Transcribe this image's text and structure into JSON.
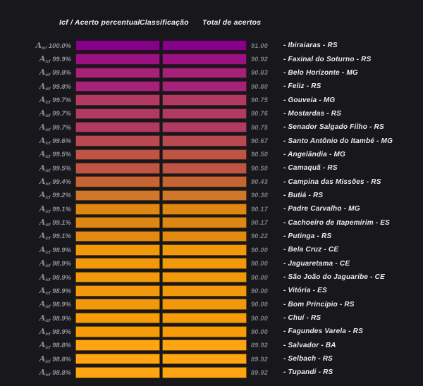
{
  "page": {
    "background": "#17171c"
  },
  "header": {
    "col_icf": "Icf / Acerto percentual",
    "col_classificacao": "Classificação",
    "col_total": "Total de acertos"
  },
  "row_label": {
    "prefix": "A",
    "subscript": "icf"
  },
  "city_prefix": "- ",
  "colors": {
    "label_gray": "#8d9197",
    "value_gray": "#7d8287",
    "city_white": "#ebecee",
    "gradient_top": "#840287",
    "gradient_bottom": "#ffa512"
  },
  "chart_data": {
    "type": "table",
    "title": "",
    "columns": [
      "Icf / Acerto percentual",
      "Classificação",
      "Total de acertos"
    ],
    "legend_position": "none",
    "grid": false,
    "rows": [
      {
        "icf_pct": "100.0%",
        "total": "91.00",
        "city": "Ibiraiaras - RS",
        "color": "#840287"
      },
      {
        "icf_pct": "99.9%",
        "total": "90.92",
        "city": "Faxinal do Soturno - RS",
        "color": "#9c1181"
      },
      {
        "icf_pct": "99.8%",
        "total": "90.83",
        "city": "Belo Horizonte - MG",
        "color": "#a52278"
      },
      {
        "icf_pct": "99.8%",
        "total": "90.80",
        "city": "Feliz - RS",
        "color": "#a52278"
      },
      {
        "icf_pct": "99.7%",
        "total": "90.75",
        "city": "Gouveia - MG",
        "color": "#b13a62"
      },
      {
        "icf_pct": "99.7%",
        "total": "90.76",
        "city": "Mostardas - RS",
        "color": "#b13a62"
      },
      {
        "icf_pct": "99.7%",
        "total": "90.75",
        "city": "Senador Salgado Filho - RS",
        "color": "#b13a62"
      },
      {
        "icf_pct": "99.6%",
        "total": "90.67",
        "city": "Santo Antônio do Itambé - MG",
        "color": "#b84951"
      },
      {
        "icf_pct": "99.5%",
        "total": "90.50",
        "city": "Angelândia - MG",
        "color": "#be5443"
      },
      {
        "icf_pct": "99.5%",
        "total": "90.50",
        "city": "Camaquã - RS",
        "color": "#be5443"
      },
      {
        "icf_pct": "99.4%",
        "total": "90.43",
        "city": "Campina das Missões - RS",
        "color": "#c66434"
      },
      {
        "icf_pct": "99.2%",
        "total": "90.30",
        "city": "Butiá - RS",
        "color": "#d1772a"
      },
      {
        "icf_pct": "99.1%",
        "total": "90.17",
        "city": "Padre Carvalho - MG",
        "color": "#df8713"
      },
      {
        "icf_pct": "99.1%",
        "total": "90.17",
        "city": "Cachoeiro de Itapemirim - ES",
        "color": "#df8713"
      },
      {
        "icf_pct": "99.1%",
        "total": "90.22",
        "city": "Putinga - RS",
        "color": "#e28a10"
      },
      {
        "icf_pct": "98.9%",
        "total": "90.00",
        "city": "Bela Cruz - CE",
        "color": "#f2990b"
      },
      {
        "icf_pct": "98.9%",
        "total": "90.00",
        "city": "Jaguaretama - CE",
        "color": "#f2990b"
      },
      {
        "icf_pct": "98.9%",
        "total": "90.00",
        "city": "São João do Jaguaribe - CE",
        "color": "#f2990b"
      },
      {
        "icf_pct": "98.9%",
        "total": "90.00",
        "city": "Vitória - ES",
        "color": "#f2990b"
      },
      {
        "icf_pct": "98.9%",
        "total": "90.00",
        "city": "Bom Princípio - RS",
        "color": "#f2990b"
      },
      {
        "icf_pct": "98.9%",
        "total": "90.00",
        "city": "Chuí - RS",
        "color": "#f59c08"
      },
      {
        "icf_pct": "98.9%",
        "total": "90.00",
        "city": "Fagundes Varela - RS",
        "color": "#f59c08"
      },
      {
        "icf_pct": "98.8%",
        "total": "89.92",
        "city": "Salvador - BA",
        "color": "#ffa512"
      },
      {
        "icf_pct": "98.8%",
        "total": "89.92",
        "city": "Selbach - RS",
        "color": "#ffa512"
      },
      {
        "icf_pct": "98.8%",
        "total": "89.92",
        "city": "Tupandi - RS",
        "color": "#ffa512"
      }
    ]
  }
}
